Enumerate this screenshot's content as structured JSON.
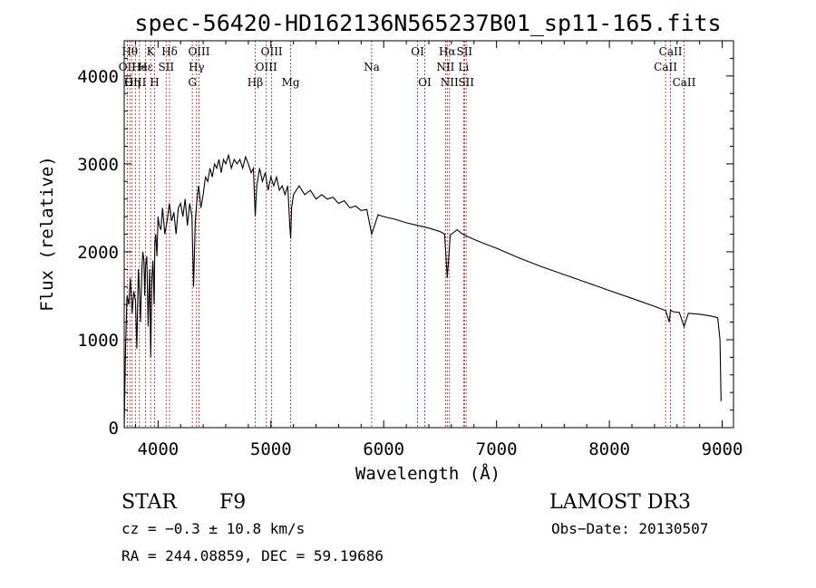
{
  "chart_data": {
    "type": "line",
    "title": "spec-56420-HD162136N565237B01_sp11-165.fits",
    "xlabel": "Wavelength (Å)",
    "ylabel": "Flux (relative)",
    "xlim": [
      3700,
      9100
    ],
    "ylim": [
      0,
      4400
    ],
    "xticks": [
      4000,
      5000,
      6000,
      7000,
      8000,
      9000
    ],
    "yticks": [
      0,
      1000,
      2000,
      3000,
      4000
    ],
    "xtick_labels": [
      "4000",
      "5000",
      "6000",
      "7000",
      "8000",
      "9000"
    ],
    "ytick_labels": [
      "0",
      "1000",
      "2000",
      "3000",
      "4000"
    ],
    "series": [
      {
        "name": "spectrum",
        "x": [
          3700,
          3712,
          3725,
          3740,
          3755,
          3770,
          3785,
          3800,
          3812,
          3825,
          3835,
          3845,
          3855,
          3865,
          3875,
          3882,
          3890,
          3900,
          3912,
          3925,
          3935,
          3945,
          3955,
          3965,
          3972,
          3980,
          3990,
          4000,
          4010,
          4025,
          4040,
          4060,
          4080,
          4100,
          4120,
          4140,
          4160,
          4180,
          4200,
          4220,
          4240,
          4260,
          4280,
          4300,
          4315,
          4330,
          4345,
          4360,
          4380,
          4400,
          4420,
          4440,
          4460,
          4480,
          4500,
          4520,
          4540,
          4560,
          4580,
          4600,
          4625,
          4650,
          4675,
          4700,
          4725,
          4750,
          4775,
          4800,
          4825,
          4845,
          4861,
          4875,
          4900,
          4925,
          4950,
          4975,
          5000,
          5025,
          5050,
          5075,
          5100,
          5125,
          5150,
          5167,
          5175,
          5183,
          5200,
          5250,
          5300,
          5350,
          5400,
          5450,
          5500,
          5550,
          5600,
          5650,
          5700,
          5750,
          5800,
          5850,
          5893,
          5950,
          6000,
          6100,
          6200,
          6300,
          6400,
          6500,
          6540,
          6563,
          6590,
          6650,
          6700,
          6800,
          6900,
          7000,
          7200,
          7400,
          7600,
          7800,
          8000,
          8200,
          8400,
          8500,
          8530,
          8542,
          8560,
          8620,
          8662,
          8700,
          8800,
          8900,
          8960,
          8980,
          8990
        ],
        "values": [
          0,
          900,
          1500,
          1400,
          1700,
          1300,
          1550,
          1450,
          900,
          1800,
          1550,
          1200,
          1750,
          2000,
          1900,
          1500,
          1850,
          1950,
          1150,
          1800,
          800,
          1700,
          1900,
          1400,
          2100,
          2200,
          1950,
          2400,
          2300,
          2250,
          2500,
          2200,
          2350,
          2550,
          2350,
          2450,
          2200,
          2500,
          2550,
          2400,
          2600,
          2300,
          2550,
          2400,
          1600,
          2350,
          2600,
          2750,
          2500,
          2650,
          2850,
          2800,
          2950,
          2850,
          3000,
          2950,
          3050,
          2900,
          3050,
          3000,
          3100,
          2950,
          3050,
          3000,
          3050,
          2950,
          3080,
          3000,
          2900,
          2950,
          2400,
          2750,
          2950,
          2800,
          2900,
          2700,
          2850,
          2750,
          2850,
          2700,
          2750,
          2650,
          2750,
          2300,
          2150,
          2500,
          2650,
          2750,
          2650,
          2700,
          2600,
          2650,
          2600,
          2620,
          2550,
          2580,
          2500,
          2520,
          2470,
          2480,
          2200,
          2420,
          2400,
          2370,
          2330,
          2300,
          2270,
          2230,
          2200,
          1700,
          2190,
          2250,
          2200,
          2140,
          2090,
          2040,
          1930,
          1830,
          1740,
          1650,
          1560,
          1470,
          1380,
          1330,
          1200,
          1340,
          1320,
          1310,
          1150,
          1300,
          1290,
          1270,
          1250,
          1000,
          300
        ]
      }
    ],
    "line_markers": [
      {
        "wavelength": 3727,
        "label": "OII",
        "row": 2
      },
      {
        "wavelength": 3750,
        "label": "Hθ",
        "row": 1
      },
      {
        "wavelength": 3770,
        "label": "Hη",
        "row": 3
      },
      {
        "wavelength": 3799,
        "label": "OIII",
        "row": 3
      },
      {
        "wavelength": 3835,
        "label": "He",
        "row": 2
      },
      {
        "wavelength": 3889,
        "label": "Hε",
        "row": 2
      },
      {
        "wavelength": 3934,
        "label": "K",
        "row": 1
      },
      {
        "wavelength": 3969,
        "label": "H",
        "row": 3
      },
      {
        "wavelength": 4072,
        "label": "SII",
        "row": 2
      },
      {
        "wavelength": 4102,
        "label": "Hδ",
        "row": 1
      },
      {
        "wavelength": 4304,
        "label": "G",
        "row": 3
      },
      {
        "wavelength": 4341,
        "label": "Hγ",
        "row": 2
      },
      {
        "wavelength": 4363,
        "label": "OIII",
        "row": 1
      },
      {
        "wavelength": 4861,
        "label": "Hβ",
        "row": 3
      },
      {
        "wavelength": 4959,
        "label": "OIII",
        "row": 2
      },
      {
        "wavelength": 5007,
        "label": "OIII",
        "row": 1
      },
      {
        "wavelength": 5175,
        "label": "Mg",
        "row": 3
      },
      {
        "wavelength": 5893,
        "label": "Na",
        "row": 2
      },
      {
        "wavelength": 6300,
        "label": "OI",
        "row": 1
      },
      {
        "wavelength": 6364,
        "label": "OI",
        "row": 3
      },
      {
        "wavelength": 6548,
        "label": "NII",
        "row": 2
      },
      {
        "wavelength": 6563,
        "label": "Hα",
        "row": 1
      },
      {
        "wavelength": 6583,
        "label": "NII",
        "row": 3
      },
      {
        "wavelength": 6708,
        "label": "Li",
        "row": 2
      },
      {
        "wavelength": 6716,
        "label": "SII",
        "row": 1
      },
      {
        "wavelength": 6731,
        "label": "SII",
        "row": 3
      },
      {
        "wavelength": 8498,
        "label": "CaII",
        "row": 2
      },
      {
        "wavelength": 8542,
        "label": "CaII",
        "row": 1
      },
      {
        "wavelength": 8662,
        "label": "CaII",
        "row": 3
      }
    ]
  },
  "info": {
    "object_class": "STAR",
    "subclass": "F9",
    "survey": "LAMOST DR3",
    "redshift": "cz = −0.3 ± 10.8 km/s",
    "obs_date": "Obs−Date: 20130507",
    "coords": "RA = 244.08859, DEC =  59.19686"
  },
  "colors": {
    "spectrum": "#000000",
    "marker": "#b22222",
    "axes": "#000000"
  }
}
